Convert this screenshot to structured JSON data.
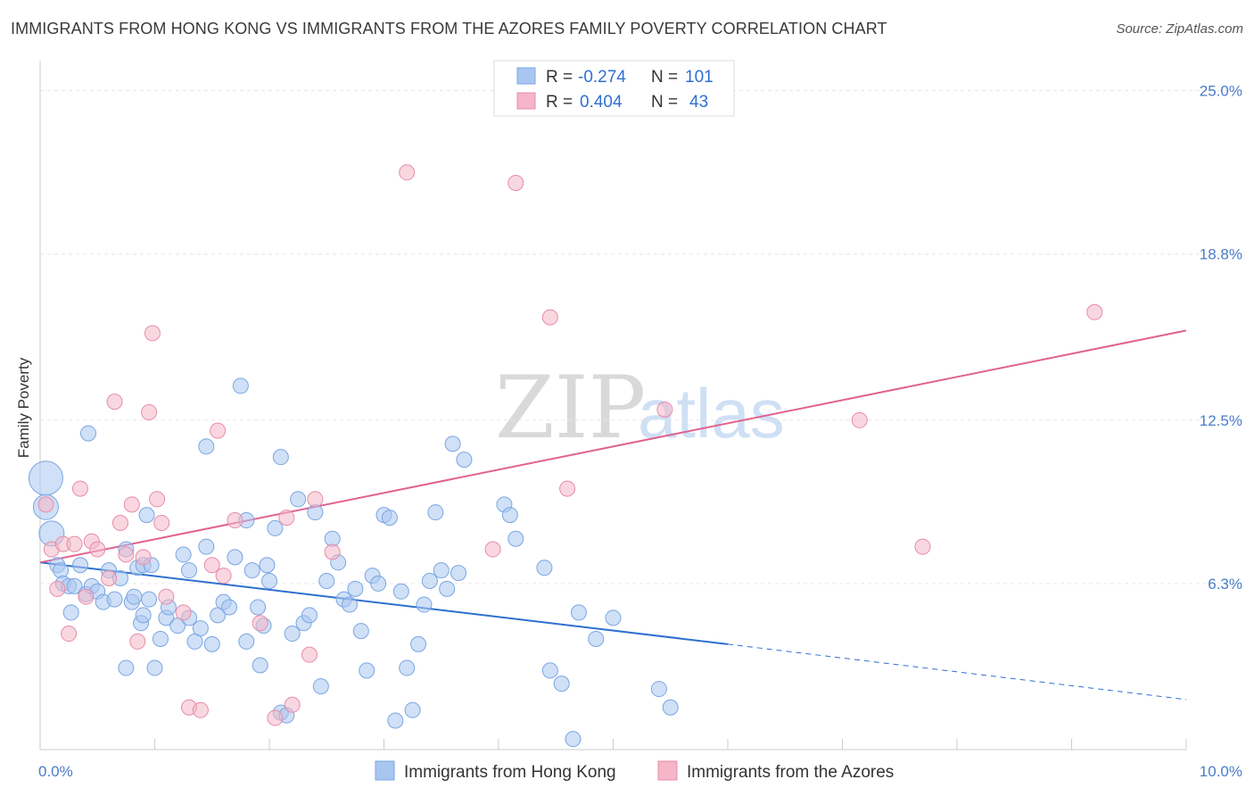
{
  "header": {
    "title": "IMMIGRANTS FROM HONG KONG VS IMMIGRANTS FROM THE AZORES FAMILY POVERTY CORRELATION CHART",
    "source": "Source: ZipAtlas.com"
  },
  "watermark": {
    "zip": "ZIP",
    "atlas": "atlas"
  },
  "legend": {
    "rows": [
      {
        "r_label": "R =",
        "r_value": "-0.274",
        "n_label": "N =",
        "n_value": "101",
        "color": "#a9c6f0"
      },
      {
        "r_label": "R =",
        "r_value": "0.404",
        "n_label": "N =",
        "n_value": "43",
        "color": "#f4b6c8"
      }
    ]
  },
  "chart_data": {
    "type": "scatter",
    "xlabel": "",
    "ylabel": "Family Poverty",
    "xlim": [
      0,
      10
    ],
    "ylim": [
      0,
      25.8
    ],
    "x_tick_labels": [
      "0.0%",
      "10.0%"
    ],
    "y_ticks": [
      6.3,
      12.5,
      18.8,
      25.0
    ],
    "y_tick_labels": [
      "6.3%",
      "12.5%",
      "18.8%",
      "25.0%"
    ],
    "grid": true,
    "legend_position": "top-center",
    "series": [
      {
        "name": "Immigrants from Hong Kong",
        "color": "#a9c6f0",
        "stroke": "#7aa6e3",
        "line_color": "#2f6fd0",
        "trend": {
          "x0": 0,
          "y0": 7.1,
          "x1": 6.0,
          "y1": 4.0,
          "dash_to_x": 10.0,
          "dash_to_y": 1.9
        },
        "points": [
          [
            0.05,
            10.3,
            3
          ],
          [
            0.05,
            9.2,
            2
          ],
          [
            0.1,
            8.2,
            2
          ],
          [
            0.15,
            7.0,
            1
          ],
          [
            0.18,
            6.8,
            1
          ],
          [
            0.2,
            6.3,
            1
          ],
          [
            0.25,
            6.2,
            1
          ],
          [
            0.3,
            6.2,
            1
          ],
          [
            0.35,
            7.0,
            1
          ],
          [
            0.4,
            5.9,
            1
          ],
          [
            0.45,
            6.2,
            1
          ],
          [
            0.5,
            6.0,
            1
          ],
          [
            0.55,
            5.6,
            1
          ],
          [
            0.6,
            6.8,
            1
          ],
          [
            0.65,
            5.7,
            1
          ],
          [
            0.7,
            6.5,
            1
          ],
          [
            0.75,
            7.6,
            1
          ],
          [
            0.8,
            5.6,
            1
          ],
          [
            0.85,
            6.9,
            1
          ],
          [
            0.9,
            7.0,
            1
          ],
          [
            0.95,
            5.7,
            1
          ],
          [
            0.27,
            5.2,
            1
          ],
          [
            0.42,
            12.0,
            1
          ],
          [
            0.75,
            3.1,
            1
          ],
          [
            0.82,
            5.8,
            1
          ],
          [
            0.88,
            4.8,
            1
          ],
          [
            0.9,
            5.1,
            1
          ],
          [
            0.93,
            8.9,
            1
          ],
          [
            0.97,
            7.0,
            1
          ],
          [
            1.0,
            3.1,
            1
          ],
          [
            1.05,
            4.2,
            1
          ],
          [
            1.1,
            5.0,
            1
          ],
          [
            1.12,
            5.4,
            1
          ],
          [
            1.2,
            4.7,
            1
          ],
          [
            1.25,
            7.4,
            1
          ],
          [
            1.3,
            5.0,
            1
          ],
          [
            1.3,
            6.8,
            1
          ],
          [
            1.35,
            4.1,
            1
          ],
          [
            1.4,
            4.6,
            1
          ],
          [
            1.45,
            7.7,
            1
          ],
          [
            1.5,
            4.0,
            1
          ],
          [
            1.55,
            5.1,
            1
          ],
          [
            1.45,
            11.5,
            1
          ],
          [
            1.6,
            5.6,
            1
          ],
          [
            1.65,
            5.4,
            1
          ],
          [
            1.7,
            7.3,
            1
          ],
          [
            1.75,
            13.8,
            1
          ],
          [
            1.8,
            4.1,
            1
          ],
          [
            1.8,
            8.7,
            1
          ],
          [
            1.85,
            6.8,
            1
          ],
          [
            1.9,
            5.4,
            1
          ],
          [
            1.92,
            3.2,
            1
          ],
          [
            1.95,
            4.7,
            1
          ],
          [
            1.98,
            7.0,
            1
          ],
          [
            2.0,
            6.4,
            1
          ],
          [
            2.05,
            8.4,
            1
          ],
          [
            2.1,
            11.1,
            1
          ],
          [
            2.1,
            1.4,
            1
          ],
          [
            2.15,
            1.3,
            1
          ],
          [
            2.2,
            4.4,
            1
          ],
          [
            2.25,
            9.5,
            1
          ],
          [
            2.3,
            4.8,
            1
          ],
          [
            2.35,
            5.1,
            1
          ],
          [
            2.4,
            9.0,
            1
          ],
          [
            2.45,
            2.4,
            1
          ],
          [
            2.5,
            6.4,
            1
          ],
          [
            2.55,
            8.0,
            1
          ],
          [
            2.6,
            7.1,
            1
          ],
          [
            2.65,
            5.7,
            1
          ],
          [
            2.7,
            5.5,
            1
          ],
          [
            2.75,
            6.1,
            1
          ],
          [
            2.8,
            4.5,
            1
          ],
          [
            2.85,
            3.0,
            1
          ],
          [
            2.9,
            6.6,
            1
          ],
          [
            2.95,
            6.3,
            1
          ],
          [
            3.0,
            8.9,
            1
          ],
          [
            3.05,
            8.8,
            1
          ],
          [
            3.1,
            1.1,
            1
          ],
          [
            3.15,
            6.0,
            1
          ],
          [
            3.2,
            3.1,
            1
          ],
          [
            3.25,
            1.5,
            1
          ],
          [
            3.3,
            4.0,
            1
          ],
          [
            3.35,
            5.5,
            1
          ],
          [
            3.4,
            6.4,
            1
          ],
          [
            3.45,
            9.0,
            1
          ],
          [
            3.5,
            6.8,
            1
          ],
          [
            3.55,
            6.1,
            1
          ],
          [
            3.6,
            11.6,
            1
          ],
          [
            3.65,
            6.7,
            1
          ],
          [
            3.7,
            11.0,
            1
          ],
          [
            4.05,
            9.3,
            1
          ],
          [
            4.1,
            8.9,
            1
          ],
          [
            4.15,
            8.0,
            1
          ],
          [
            4.45,
            3.0,
            1
          ],
          [
            4.55,
            2.5,
            1
          ],
          [
            4.65,
            0.4,
            1
          ],
          [
            4.7,
            5.2,
            1
          ],
          [
            4.85,
            4.2,
            1
          ],
          [
            5.0,
            5.0,
            1
          ],
          [
            5.4,
            2.3,
            1
          ],
          [
            5.5,
            1.6,
            1
          ],
          [
            4.4,
            6.9,
            1
          ]
        ]
      },
      {
        "name": "Immigrants from the Azores",
        "color": "#f4b6c8",
        "stroke": "#e88ca8",
        "line_color": "#e0628f",
        "trend": {
          "x0": 0,
          "y0": 7.1,
          "x1": 10.0,
          "y1": 15.9
        },
        "points": [
          [
            0.05,
            9.3,
            1
          ],
          [
            0.1,
            7.6,
            1
          ],
          [
            0.15,
            6.1,
            1
          ],
          [
            0.2,
            7.8,
            1
          ],
          [
            0.25,
            4.4,
            1
          ],
          [
            0.3,
            7.8,
            1
          ],
          [
            0.35,
            9.9,
            1
          ],
          [
            0.4,
            5.8,
            1
          ],
          [
            0.45,
            7.9,
            1
          ],
          [
            0.5,
            7.6,
            1
          ],
          [
            0.6,
            6.5,
            1
          ],
          [
            0.65,
            13.2,
            1
          ],
          [
            0.7,
            8.6,
            1
          ],
          [
            0.75,
            7.4,
            1
          ],
          [
            0.8,
            9.3,
            1
          ],
          [
            0.85,
            4.1,
            1
          ],
          [
            0.9,
            7.3,
            1
          ],
          [
            0.95,
            12.8,
            1
          ],
          [
            0.98,
            15.8,
            1
          ],
          [
            1.02,
            9.5,
            1
          ],
          [
            1.06,
            8.6,
            1
          ],
          [
            1.1,
            5.8,
            1
          ],
          [
            1.25,
            5.2,
            1
          ],
          [
            1.3,
            1.6,
            1
          ],
          [
            1.4,
            1.5,
            1
          ],
          [
            1.5,
            7.0,
            1
          ],
          [
            1.55,
            12.1,
            1
          ],
          [
            1.6,
            6.6,
            1
          ],
          [
            1.7,
            8.7,
            1
          ],
          [
            1.92,
            4.8,
            1
          ],
          [
            2.05,
            1.2,
            1
          ],
          [
            2.15,
            8.8,
            1
          ],
          [
            2.2,
            1.7,
            1
          ],
          [
            2.35,
            3.6,
            1
          ],
          [
            2.4,
            9.5,
            1
          ],
          [
            2.55,
            7.5,
            1
          ],
          [
            3.2,
            21.9,
            1
          ],
          [
            3.95,
            7.6,
            1
          ],
          [
            4.15,
            21.5,
            1
          ],
          [
            4.45,
            16.4,
            1
          ],
          [
            4.6,
            9.9,
            1
          ],
          [
            5.45,
            12.9,
            1
          ],
          [
            7.15,
            12.5,
            1
          ],
          [
            7.7,
            7.7,
            1
          ],
          [
            9.2,
            16.6,
            1
          ]
        ]
      }
    ]
  },
  "bottom_legend": {
    "items": [
      {
        "label": "Immigrants from Hong Kong",
        "color": "#a9c6f0"
      },
      {
        "label": "Immigrants from the Azores",
        "color": "#f4b6c8"
      }
    ]
  }
}
